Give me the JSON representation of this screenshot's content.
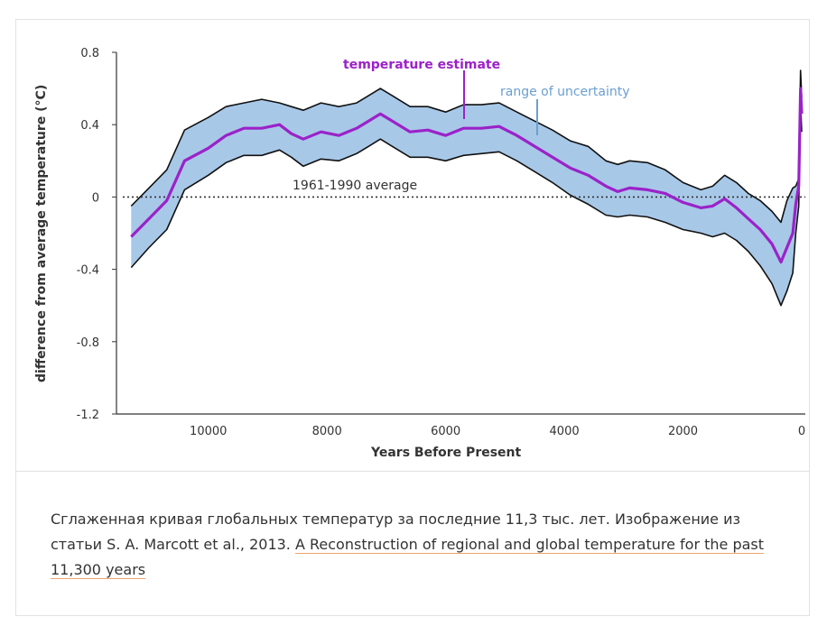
{
  "chart_data": {
    "type": "line",
    "title": "",
    "xlabel": "Years Before Present",
    "ylabel": "difference from average temperature (°C)",
    "xlim": [
      11350,
      0
    ],
    "ylim": [
      -1.2,
      0.8
    ],
    "x_ticks": [
      10000,
      8000,
      6000,
      4000,
      2000,
      0
    ],
    "y_ticks": [
      0.8,
      0.4,
      0,
      -0.4,
      -0.8,
      -1.2
    ],
    "y_tick_labels": [
      "0.8",
      "0.4",
      "0",
      "-0.4",
      "-0.8",
      "-1.2"
    ],
    "colors": {
      "estimate": "#9b22c9",
      "band": "#a8c8e8",
      "band_edge": "#111111",
      "baseline": "#333333"
    },
    "annotations": {
      "estimate_label": "temperature estimate",
      "uncertainty_label": "range of uncertainty",
      "baseline_label": "1961-1990 average"
    },
    "series": [
      {
        "name": "temperature estimate",
        "x": [
          11300,
          11000,
          10700,
          10400,
          10000,
          9700,
          9400,
          9100,
          8800,
          8600,
          8400,
          8100,
          7800,
          7500,
          7300,
          7100,
          6900,
          6600,
          6300,
          6000,
          5700,
          5400,
          5100,
          4800,
          4500,
          4200,
          3900,
          3600,
          3300,
          3100,
          2900,
          2600,
          2300,
          2000,
          1700,
          1500,
          1300,
          1100,
          900,
          700,
          500,
          350,
          250,
          150,
          100,
          50,
          20,
          0
        ],
        "values": [
          -0.22,
          -0.12,
          -0.02,
          0.2,
          0.27,
          0.34,
          0.38,
          0.38,
          0.4,
          0.35,
          0.32,
          0.36,
          0.34,
          0.38,
          0.42,
          0.46,
          0.42,
          0.36,
          0.37,
          0.34,
          0.38,
          0.38,
          0.39,
          0.34,
          0.28,
          0.22,
          0.16,
          0.12,
          0.06,
          0.03,
          0.05,
          0.04,
          0.02,
          -0.03,
          -0.06,
          -0.05,
          -0.01,
          -0.06,
          -0.12,
          -0.18,
          -0.26,
          -0.36,
          -0.28,
          -0.2,
          -0.04,
          0.06,
          0.6,
          0.46
        ]
      },
      {
        "name": "uncertainty upper",
        "x": [
          11300,
          11000,
          10700,
          10400,
          10000,
          9700,
          9400,
          9100,
          8800,
          8600,
          8400,
          8100,
          7800,
          7500,
          7300,
          7100,
          6900,
          6600,
          6300,
          6000,
          5700,
          5400,
          5100,
          4800,
          4500,
          4200,
          3900,
          3600,
          3300,
          3100,
          2900,
          2600,
          2300,
          2000,
          1700,
          1500,
          1300,
          1100,
          900,
          700,
          500,
          350,
          250,
          150,
          100,
          50,
          20,
          0
        ],
        "values": [
          -0.05,
          0.05,
          0.15,
          0.37,
          0.44,
          0.5,
          0.52,
          0.54,
          0.52,
          0.5,
          0.48,
          0.52,
          0.5,
          0.52,
          0.56,
          0.6,
          0.56,
          0.5,
          0.5,
          0.47,
          0.51,
          0.51,
          0.52,
          0.47,
          0.42,
          0.37,
          0.31,
          0.28,
          0.2,
          0.18,
          0.2,
          0.19,
          0.15,
          0.08,
          0.04,
          0.06,
          0.12,
          0.08,
          0.02,
          -0.02,
          -0.08,
          -0.14,
          -0.02,
          0.05,
          0.06,
          0.1,
          0.7,
          0.55
        ]
      },
      {
        "name": "uncertainty lower",
        "x": [
          11300,
          11000,
          10700,
          10400,
          10000,
          9700,
          9400,
          9100,
          8800,
          8600,
          8400,
          8100,
          7800,
          7500,
          7300,
          7100,
          6900,
          6600,
          6300,
          6000,
          5700,
          5400,
          5100,
          4800,
          4500,
          4200,
          3900,
          3600,
          3300,
          3100,
          2900,
          2600,
          2300,
          2000,
          1700,
          1500,
          1300,
          1100,
          900,
          700,
          500,
          350,
          250,
          150,
          100,
          50,
          20,
          0
        ],
        "values": [
          -0.39,
          -0.28,
          -0.18,
          0.04,
          0.12,
          0.19,
          0.23,
          0.23,
          0.26,
          0.22,
          0.17,
          0.21,
          0.2,
          0.24,
          0.28,
          0.32,
          0.28,
          0.22,
          0.22,
          0.2,
          0.23,
          0.24,
          0.25,
          0.2,
          0.14,
          0.08,
          0.01,
          -0.04,
          -0.1,
          -0.11,
          -0.1,
          -0.11,
          -0.14,
          -0.18,
          -0.2,
          -0.22,
          -0.2,
          -0.24,
          -0.3,
          -0.38,
          -0.48,
          -0.6,
          -0.52,
          -0.42,
          -0.2,
          -0.05,
          0.52,
          0.36
        ]
      }
    ]
  },
  "caption": {
    "text": "Сглаженная кривая глобальных температур за последние 11,3 тыс. лет. Изображение из статьи S. A. Marcott et al., 2013. ",
    "link_text": "A Reconstruction of regional and global temperature for the past 11,300 years"
  }
}
